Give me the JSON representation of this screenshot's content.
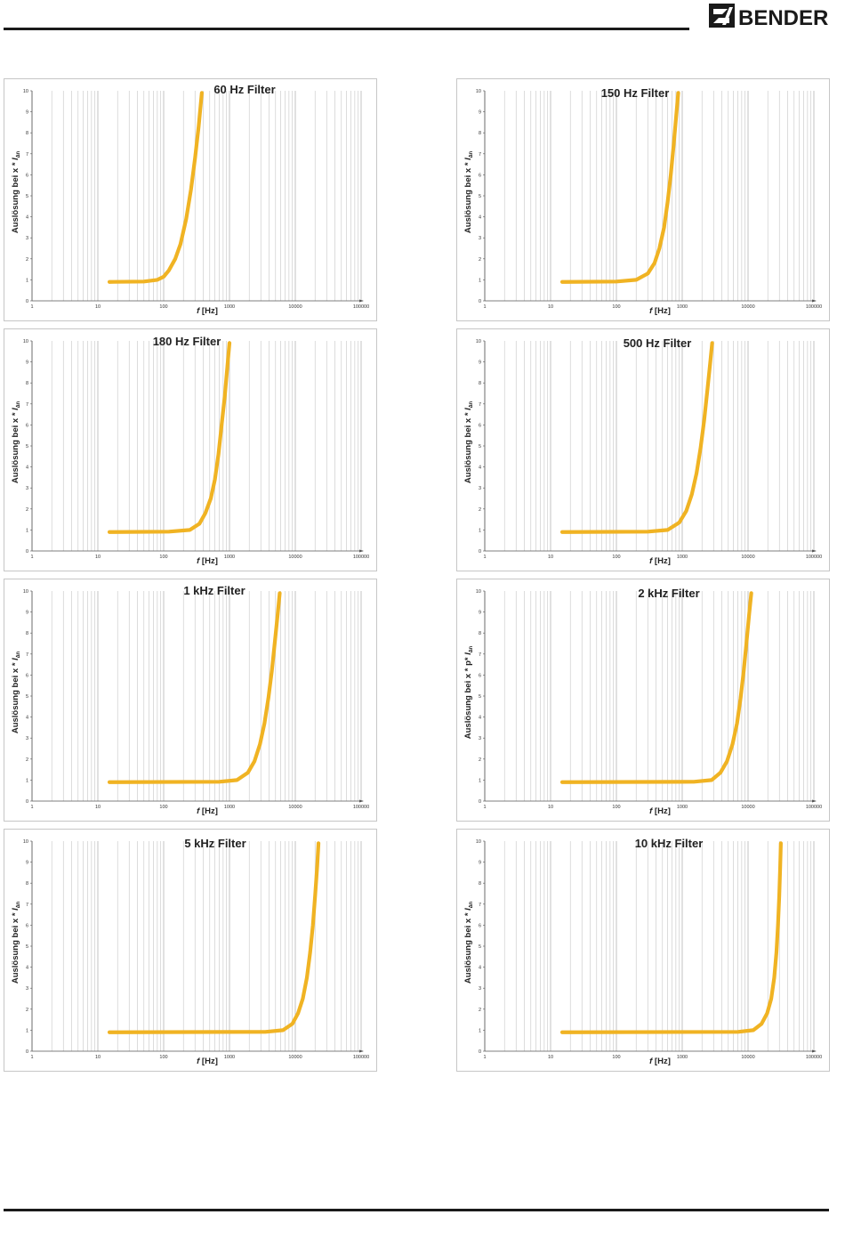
{
  "brand": {
    "name": "BENDER",
    "accent": "#1a1a1a"
  },
  "chart_data": [
    {
      "type": "line",
      "title": "60 Hz Filter",
      "xlabel_italic": "f",
      "xlabel_unit": "[Hz]",
      "ylabel_prefix": "Auslösung bei x *",
      "ylabel_symbol": "I",
      "ylabel_sub": "∆n",
      "xscale": "log",
      "xlim": [
        1,
        100000
      ],
      "ylim": [
        0,
        10
      ],
      "yticks": [
        "0",
        "1",
        "2",
        "3",
        "4",
        "5",
        "6",
        "7",
        "8",
        "9",
        "10"
      ],
      "xticks": [
        {
          "value": 1,
          "label": "1"
        },
        {
          "value": 10,
          "label": "10"
        },
        {
          "value": 100,
          "label": "100"
        },
        {
          "value": 1000,
          "label": "1000"
        },
        {
          "value": 10000,
          "label": "10000"
        },
        {
          "value": 100000,
          "label": "100000"
        }
      ],
      "grid": true,
      "color": "#f0b323",
      "series": [
        {
          "x": [
            15,
            50,
            80,
            100,
            120,
            150,
            180,
            220,
            260,
            300,
            340,
            380
          ],
          "y": [
            0.9,
            0.92,
            1.0,
            1.15,
            1.45,
            2.0,
            2.7,
            3.9,
            5.3,
            6.8,
            8.3,
            9.9
          ]
        }
      ]
    },
    {
      "type": "line",
      "title": "150 Hz Filter",
      "xlabel_italic": "f",
      "xlabel_unit": "[Hz]",
      "ylabel_prefix": "Auslösung bei x *",
      "ylabel_symbol": "I",
      "ylabel_sub": "∆n",
      "xscale": "log",
      "xlim": [
        1,
        100000
      ],
      "ylim": [
        0,
        10
      ],
      "yticks": [
        "0",
        "1",
        "2",
        "3",
        "4",
        "5",
        "6",
        "7",
        "8",
        "9",
        "10"
      ],
      "xticks": [
        {
          "value": 1,
          "label": "1"
        },
        {
          "value": 10,
          "label": "10"
        },
        {
          "value": 100,
          "label": "100"
        },
        {
          "value": 1000,
          "label": "1000"
        },
        {
          "value": 10000,
          "label": "10000"
        },
        {
          "value": 100000,
          "label": "100000"
        }
      ],
      "grid": true,
      "color": "#f0b323",
      "series": [
        {
          "x": [
            15,
            100,
            200,
            300,
            380,
            450,
            530,
            600,
            670,
            740,
            810,
            870
          ],
          "y": [
            0.9,
            0.92,
            1.0,
            1.3,
            1.8,
            2.5,
            3.5,
            4.7,
            6.0,
            7.4,
            8.8,
            9.9
          ]
        }
      ]
    },
    {
      "type": "line",
      "title": "180 Hz Filter",
      "xlabel_italic": "f",
      "xlabel_unit": "[Hz]",
      "ylabel_prefix": "Auslösung bei x *",
      "ylabel_symbol": "I",
      "ylabel_sub": "∆n",
      "xscale": "log",
      "xlim": [
        1,
        100000
      ],
      "ylim": [
        0,
        10
      ],
      "yticks": [
        "0",
        "1",
        "2",
        "3",
        "4",
        "5",
        "6",
        "7",
        "8",
        "9",
        "10"
      ],
      "xticks": [
        {
          "value": 1,
          "label": "1"
        },
        {
          "value": 10,
          "label": "10"
        },
        {
          "value": 100,
          "label": "100"
        },
        {
          "value": 1000,
          "label": "1000"
        },
        {
          "value": 10000,
          "label": "10000"
        },
        {
          "value": 100000,
          "label": "100000"
        }
      ],
      "grid": true,
      "color": "#f0b323",
      "series": [
        {
          "x": [
            15,
            120,
            250,
            350,
            430,
            520,
            600,
            680,
            760,
            850,
            930,
            1000
          ],
          "y": [
            0.9,
            0.92,
            1.0,
            1.3,
            1.8,
            2.5,
            3.4,
            4.6,
            6.0,
            7.4,
            8.8,
            9.9
          ]
        }
      ]
    },
    {
      "type": "line",
      "title": "500 Hz Filter",
      "xlabel_italic": "f",
      "xlabel_unit": "[Hz]",
      "ylabel_prefix": "Auslösung bei x *",
      "ylabel_symbol": "I",
      "ylabel_sub": "∆n",
      "xscale": "log",
      "xlim": [
        1,
        100000
      ],
      "ylim": [
        0,
        10
      ],
      "yticks": [
        "0",
        "1",
        "2",
        "3",
        "4",
        "5",
        "6",
        "7",
        "8",
        "9",
        "10"
      ],
      "xticks": [
        {
          "value": 1,
          "label": "1"
        },
        {
          "value": 10,
          "label": "10"
        },
        {
          "value": 100,
          "label": "100"
        },
        {
          "value": 1000,
          "label": "1000"
        },
        {
          "value": 10000,
          "label": "10000"
        },
        {
          "value": 100000,
          "label": "100000"
        }
      ],
      "xtick_label_overrides": {
        "100": "100",
        "1000": "1000"
      },
      "grid": true,
      "color": "#f0b323",
      "series": [
        {
          "x": [
            15,
            300,
            600,
            900,
            1150,
            1400,
            1650,
            1900,
            2150,
            2400,
            2650,
            2850
          ],
          "y": [
            0.9,
            0.92,
            1.0,
            1.35,
            1.9,
            2.7,
            3.7,
            4.9,
            6.2,
            7.6,
            8.9,
            9.9
          ]
        }
      ]
    },
    {
      "type": "line",
      "title": "1 kHz Filter",
      "xlabel_italic": "f",
      "xlabel_unit": "[Hz]",
      "ylabel_prefix": "Auslösung bei x *",
      "ylabel_symbol": "I",
      "ylabel_sub": "∆n",
      "xscale": "log",
      "xlim": [
        1,
        100000
      ],
      "ylim": [
        0,
        10
      ],
      "yticks": [
        "0",
        "1",
        "2",
        "3",
        "4",
        "5",
        "6",
        "7",
        "8",
        "9",
        "10"
      ],
      "xticks": [
        {
          "value": 1,
          "label": "1"
        },
        {
          "value": 10,
          "label": "10"
        },
        {
          "value": 100,
          "label": "100"
        },
        {
          "value": 1000,
          "label": "1000"
        },
        {
          "value": 10000,
          "label": "10000"
        },
        {
          "value": 100000,
          "label": "100000"
        }
      ],
      "grid": true,
      "color": "#f0b323",
      "series": [
        {
          "x": [
            15,
            700,
            1300,
            1900,
            2400,
            2900,
            3400,
            3900,
            4400,
            4900,
            5400,
            5800
          ],
          "y": [
            0.9,
            0.92,
            1.0,
            1.35,
            1.9,
            2.7,
            3.7,
            4.9,
            6.2,
            7.6,
            8.9,
            9.9
          ]
        }
      ]
    },
    {
      "type": "line",
      "title": "2 kHz Filter",
      "xlabel_italic": "f",
      "xlabel_unit": "[Hz]",
      "ylabel_prefix": "Auslösung bei x * p*",
      "ylabel_symbol": "I",
      "ylabel_sub": "∆n",
      "xscale": "log",
      "xlim": [
        1,
        100000
      ],
      "ylim": [
        0,
        10
      ],
      "yticks": [
        "0",
        "1",
        "2",
        "3",
        "4",
        "5",
        "6",
        "7",
        "8",
        "9",
        "10"
      ],
      "xticks": [
        {
          "value": 1,
          "label": "1"
        },
        {
          "value": 10,
          "label": "10"
        },
        {
          "value": 100,
          "label": "100"
        },
        {
          "value": 1000,
          "label": "1000"
        },
        {
          "value": 10000,
          "label": "10000"
        },
        {
          "value": 100000,
          "label": "100000"
        }
      ],
      "xtick_label_overrides": {
        "100": "100"
      },
      "grid": true,
      "color": "#f0b323",
      "series": [
        {
          "x": [
            15,
            1500,
            2800,
            3800,
            4800,
            5800,
            6800,
            7700,
            8600,
            9500,
            10400,
            11200
          ],
          "y": [
            0.9,
            0.92,
            1.0,
            1.35,
            1.9,
            2.7,
            3.7,
            4.9,
            6.2,
            7.6,
            8.9,
            9.9
          ]
        }
      ]
    },
    {
      "type": "line",
      "title": "5 kHz Filter",
      "xlabel_italic": "f",
      "xlabel_unit": "[Hz]",
      "ylabel_prefix": "Auslösung bei x *",
      "ylabel_symbol": "I",
      "ylabel_sub": "∆n",
      "xscale": "log",
      "xlim": [
        1,
        100000
      ],
      "ylim": [
        0,
        10
      ],
      "yticks": [
        "0",
        "1",
        "2",
        "3",
        "4",
        "5",
        "6",
        "7",
        "8",
        "9",
        "10"
      ],
      "xticks": [
        {
          "value": 1,
          "label": "1"
        },
        {
          "value": 10,
          "label": "10"
        },
        {
          "value": 100,
          "label": "100"
        },
        {
          "value": 1000,
          "label": "1000"
        },
        {
          "value": 10000,
          "label": "10000"
        },
        {
          "value": 100000,
          "label": "100000"
        }
      ],
      "grid": true,
      "color": "#f0b323",
      "series": [
        {
          "x": [
            15,
            3500,
            6500,
            9000,
            11000,
            13000,
            15000,
            16800,
            18500,
            20000,
            21500,
            22500
          ],
          "y": [
            0.9,
            0.92,
            1.0,
            1.3,
            1.8,
            2.5,
            3.5,
            4.7,
            6.0,
            7.4,
            8.8,
            9.9
          ]
        }
      ]
    },
    {
      "type": "line",
      "title": "10 kHz Filter",
      "xlabel_italic": "f",
      "xlabel_unit": "[Hz]",
      "ylabel_prefix": "Auslösung bei x *",
      "ylabel_symbol": "I",
      "ylabel_sub": "∆n",
      "xscale": "log",
      "xlim": [
        1,
        100000
      ],
      "ylim": [
        0,
        10
      ],
      "yticks": [
        "0",
        "1",
        "2",
        "3",
        "4",
        "5",
        "6",
        "7",
        "8",
        "9",
        "10"
      ],
      "xticks": [
        {
          "value": 1,
          "label": "1"
        },
        {
          "value": 10,
          "label": "10"
        },
        {
          "value": 100,
          "label": "100"
        },
        {
          "value": 1000,
          "label": "1000"
        },
        {
          "value": 10000,
          "label": "10000"
        },
        {
          "value": 100000,
          "label": "100000"
        }
      ],
      "grid": true,
      "color": "#f0b323",
      "series": [
        {
          "x": [
            15,
            7000,
            12000,
            16000,
            19500,
            22500,
            25000,
            27000,
            28500,
            29800,
            30800,
            31500
          ],
          "y": [
            0.9,
            0.92,
            1.0,
            1.3,
            1.8,
            2.5,
            3.5,
            4.7,
            6.0,
            7.4,
            8.8,
            9.9
          ]
        }
      ]
    }
  ]
}
